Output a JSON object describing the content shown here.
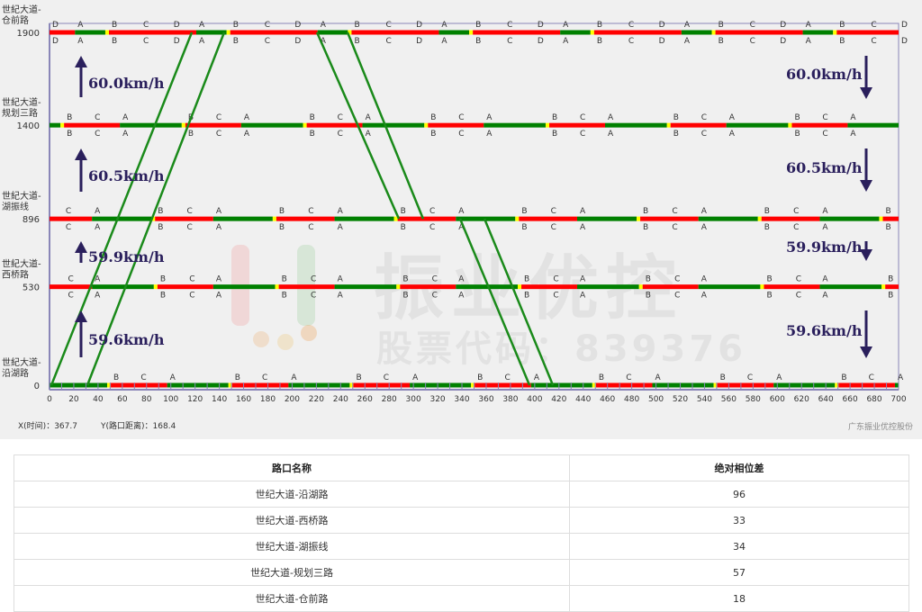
{
  "chart": {
    "cycle": 100,
    "yellow": 3,
    "xlim": [
      0,
      700
    ],
    "ylim": [
      0,
      1900
    ],
    "x_ticks": [
      0,
      20,
      40,
      60,
      80,
      100,
      120,
      140,
      160,
      180,
      200,
      220,
      240,
      260,
      280,
      300,
      320,
      340,
      360,
      380,
      400,
      420,
      440,
      460,
      480,
      500,
      520,
      540,
      560,
      580,
      600,
      620,
      640,
      660,
      680,
      700
    ],
    "colors": {
      "green": "#008000",
      "red": "#ff0000",
      "yellow": "#ffff00",
      "band": "#1a8a1a",
      "arrow": "#2a1f5c",
      "axis": "#8a86b8"
    },
    "intersections": [
      {
        "line1": "世紀大道-",
        "line2": "仓前路",
        "distance": "1900",
        "d": 1900,
        "green_start": 21,
        "green_end": 46,
        "phases": [
          {
            "name": "B",
            "t": 49
          },
          {
            "name": "C",
            "t": 75
          },
          {
            "name": "D",
            "t": 100
          },
          {
            "name": "A",
            "t": 21
          }
        ]
      },
      {
        "line1": "世紀大道-",
        "line2": "规划三路",
        "distance": "1400",
        "d": 1400,
        "green_start": 58,
        "green_end": 109,
        "phases": [
          {
            "name": "B",
            "t": 12
          },
          {
            "name": "C",
            "t": 35
          },
          {
            "name": "A",
            "t": 58
          }
        ]
      },
      {
        "line1": "世紀大道-",
        "line2": "湖振线",
        "distance": "896",
        "d": 896,
        "green_start": 35,
        "green_end": 84,
        "phases": [
          {
            "name": "B",
            "t": 87
          },
          {
            "name": "C",
            "t": 11
          },
          {
            "name": "A",
            "t": 35
          }
        ]
      },
      {
        "line1": "世紀大道-",
        "line2": "西桥路",
        "distance": "530",
        "d": 530,
        "green_start": 35,
        "green_end": 86,
        "phases": [
          {
            "name": "B",
            "t": 89
          },
          {
            "name": "C",
            "t": 13
          },
          {
            "name": "A",
            "t": 35
          }
        ]
      },
      {
        "line1": "世紀大道-",
        "line2": "沿湖路",
        "distance": "0",
        "d": 0,
        "green_start": -3,
        "green_end": 47.5,
        "phases": [
          {
            "name": "B",
            "t": 50.5
          },
          {
            "name": "C",
            "t": 73
          },
          {
            "name": "A",
            "t": 97
          }
        ]
      }
    ],
    "green_bands": [
      [
        [
          1.5,
          0
        ],
        [
          117.3,
          1900
        ]
      ],
      [
        [
          31.2,
          0
        ],
        [
          144,
          1900
        ]
      ],
      [
        [
          220.5,
          1900
        ],
        [
          288,
          896
        ]
      ],
      [
        [
          245.7,
          1900
        ],
        [
          308,
          896
        ]
      ],
      [
        [
          338.5,
          896
        ],
        [
          395.7,
          0
        ]
      ],
      [
        [
          358.6,
          896
        ],
        [
          415,
          0
        ]
      ]
    ],
    "speeds_up": [
      "60.0km/h",
      "60.5km/h",
      "59.9km/h",
      "59.6km/h"
    ],
    "speeds_down": [
      "60.0km/h",
      "60.5km/h",
      "59.9km/h",
      "59.6km/h"
    ]
  },
  "readout": {
    "x": "X(时间)：367.7",
    "y": "Y(路口距离)：168.4"
  },
  "credit": "广东振业优控股份",
  "watermark": {
    "name": "振业优控",
    "code": "股票代码：839376"
  },
  "table": {
    "headers": [
      "路口名称",
      "绝对相位差"
    ],
    "rows": [
      [
        "世纪大道-沿湖路",
        "96"
      ],
      [
        "世纪大道-西桥路",
        "33"
      ],
      [
        "世纪大道-湖振线",
        "34"
      ],
      [
        "世纪大道-规划三路",
        "57"
      ],
      [
        "世纪大道-仓前路",
        "18"
      ]
    ]
  }
}
